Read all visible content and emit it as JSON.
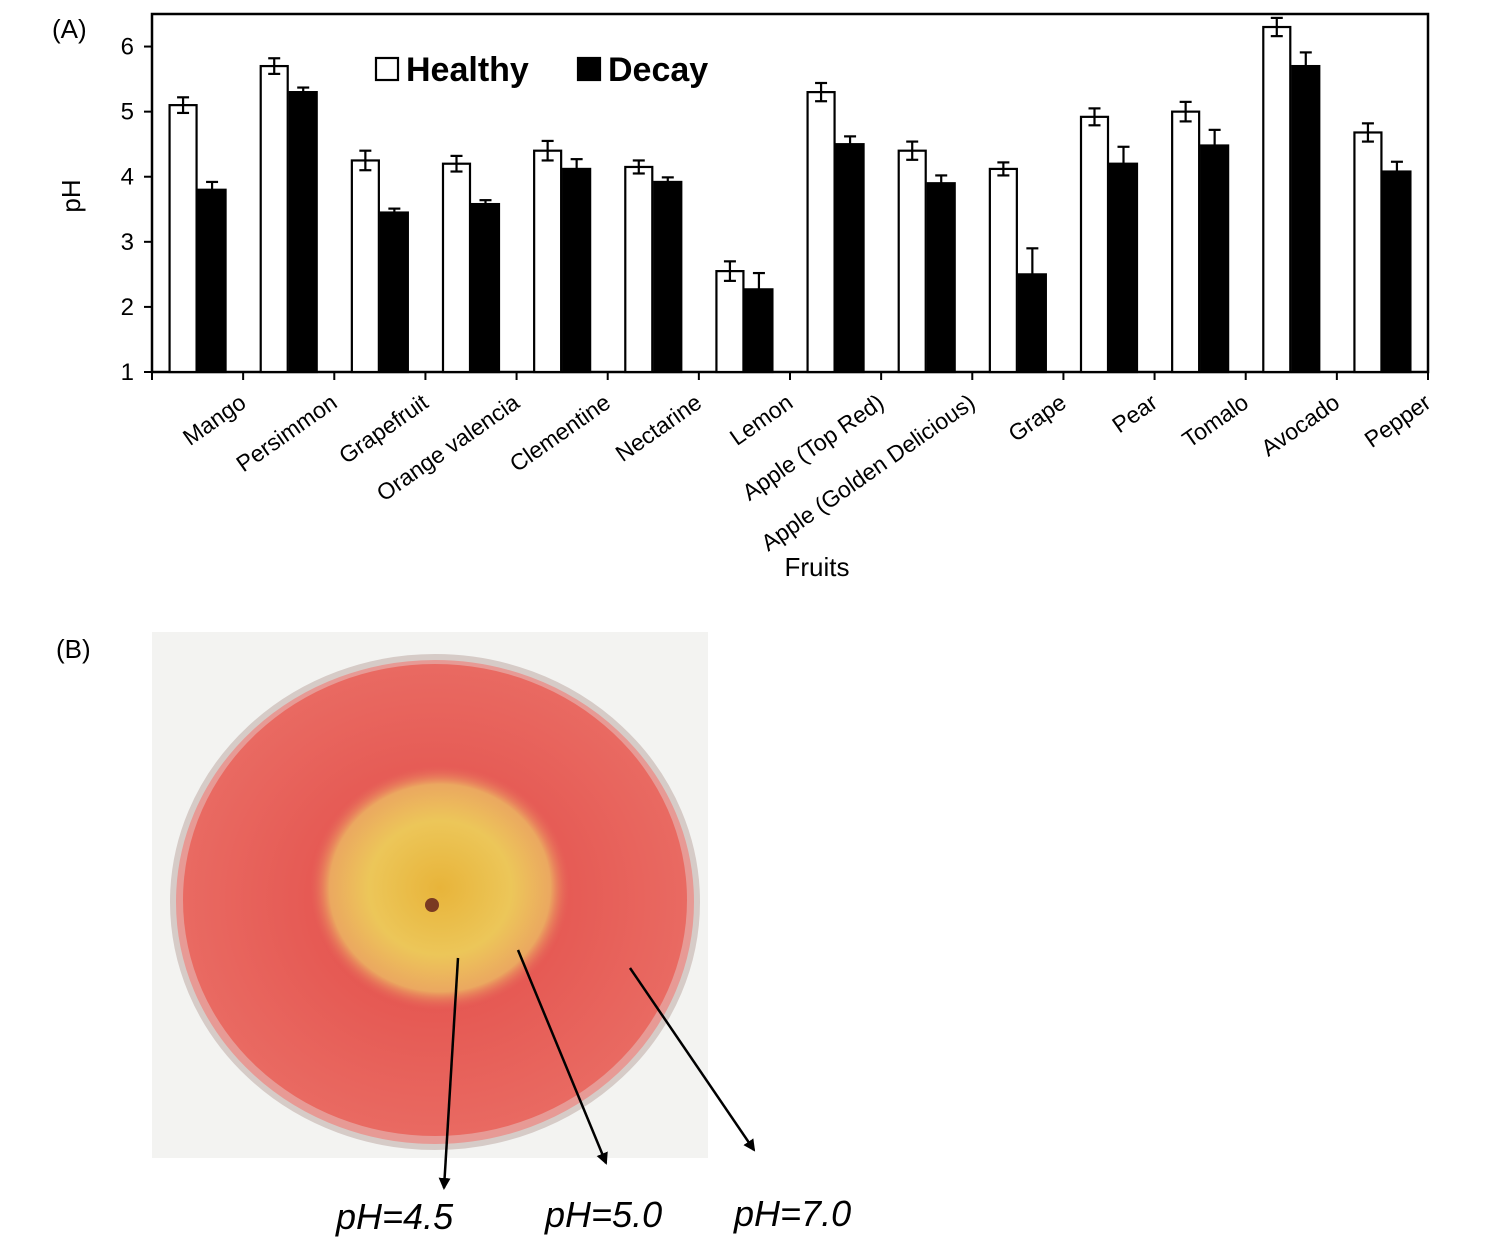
{
  "panels": {
    "a_label": "(A)",
    "b_label": "(B)"
  },
  "chart_data": {
    "type": "bar",
    "title": "",
    "xlabel": "Fruits",
    "ylabel": "pH",
    "ylim": [
      1,
      6.5
    ],
    "yticks": [
      "1",
      "2",
      "3",
      "4",
      "5",
      "6"
    ],
    "grid": false,
    "legend_position": "top-center",
    "categories": [
      "Mango",
      "Persimmon",
      "Grapefruit",
      "Orange valencia",
      "Clementine",
      "Nectarine",
      "Lemon",
      "Apple (Top Red)",
      "Apple (Golden Delicious)",
      "Grape",
      "Pear",
      "Tomalo",
      "Avocado",
      "Pepper"
    ],
    "series": [
      {
        "name": "Healthy",
        "color": "#ffffff",
        "values": [
          5.1,
          5.7,
          4.25,
          4.2,
          4.4,
          4.15,
          2.55,
          5.3,
          4.4,
          4.12,
          4.92,
          5.0,
          6.3,
          4.68
        ],
        "errors": [
          0.12,
          0.12,
          0.15,
          0.12,
          0.15,
          0.1,
          0.15,
          0.14,
          0.14,
          0.1,
          0.13,
          0.15,
          0.14,
          0.14
        ]
      },
      {
        "name": "Decay",
        "color": "#000000",
        "values": [
          3.8,
          5.3,
          3.45,
          3.58,
          4.12,
          3.92,
          2.27,
          4.5,
          3.9,
          2.5,
          4.2,
          4.48,
          5.7,
          4.08
        ],
        "errors": [
          0.12,
          0.07,
          0.06,
          0.06,
          0.15,
          0.07,
          0.25,
          0.12,
          0.12,
          0.4,
          0.26,
          0.24,
          0.21,
          0.15
        ]
      }
    ]
  },
  "photo": {
    "plate_color": "#e85a55",
    "center_color": "#e6c14a",
    "ph_labels": [
      "pH=4.5",
      "pH=5.0",
      "pH=7.0"
    ]
  }
}
